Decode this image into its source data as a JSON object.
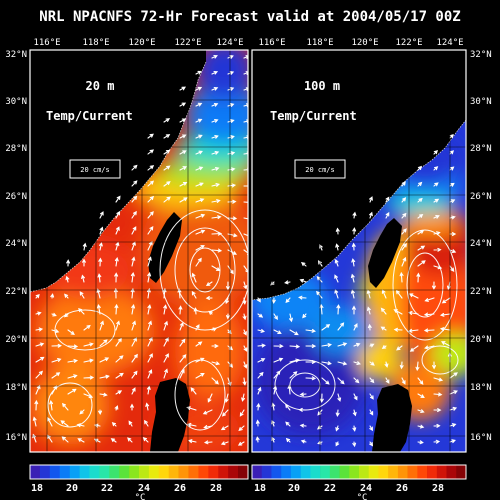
{
  "title": "NRL NPACNFS 72-Hr Forecast valid at 2004/05/17 00Z",
  "lon_labels": [
    "116°E",
    "118°E",
    "120°E",
    "122°E",
    "124°E"
  ],
  "lat_labels_left": [
    "32°N",
    "30°N",
    "28°N",
    "26°N",
    "24°N",
    "22°N",
    "20°N",
    "18°N",
    "16°N"
  ],
  "lat_labels_right": [
    "32°N",
    "30°N",
    "28°N",
    "26°N",
    "24°N",
    "22°N",
    "20°N",
    "18°N",
    "16°N"
  ],
  "panels": [
    {
      "depth": "20 m",
      "field": "Temp/Current",
      "scale_vector": "20 cm/s"
    },
    {
      "depth": "100 m",
      "field": "Temp/Current",
      "scale_vector": "20 cm/s"
    }
  ],
  "colorbar": {
    "ticks": [
      "18",
      "20",
      "22",
      "24",
      "26",
      "28"
    ],
    "unit": "°C",
    "colors": [
      "#3a1fb5",
      "#2436d6",
      "#1257ee",
      "#0a7cf7",
      "#08a0f6",
      "#10c4e8",
      "#1adccc",
      "#28e6a8",
      "#3ce36e",
      "#5be33a",
      "#8ae61e",
      "#bce814",
      "#e8ea0e",
      "#ffd60c",
      "#ffb60a",
      "#ff9408",
      "#ff6f06",
      "#ff4806",
      "#f02a08",
      "#d01408",
      "#aa0608",
      "#850306"
    ]
  },
  "colors": {
    "background": "#000000",
    "land": "#000000",
    "vectors": "#ffffff"
  }
}
